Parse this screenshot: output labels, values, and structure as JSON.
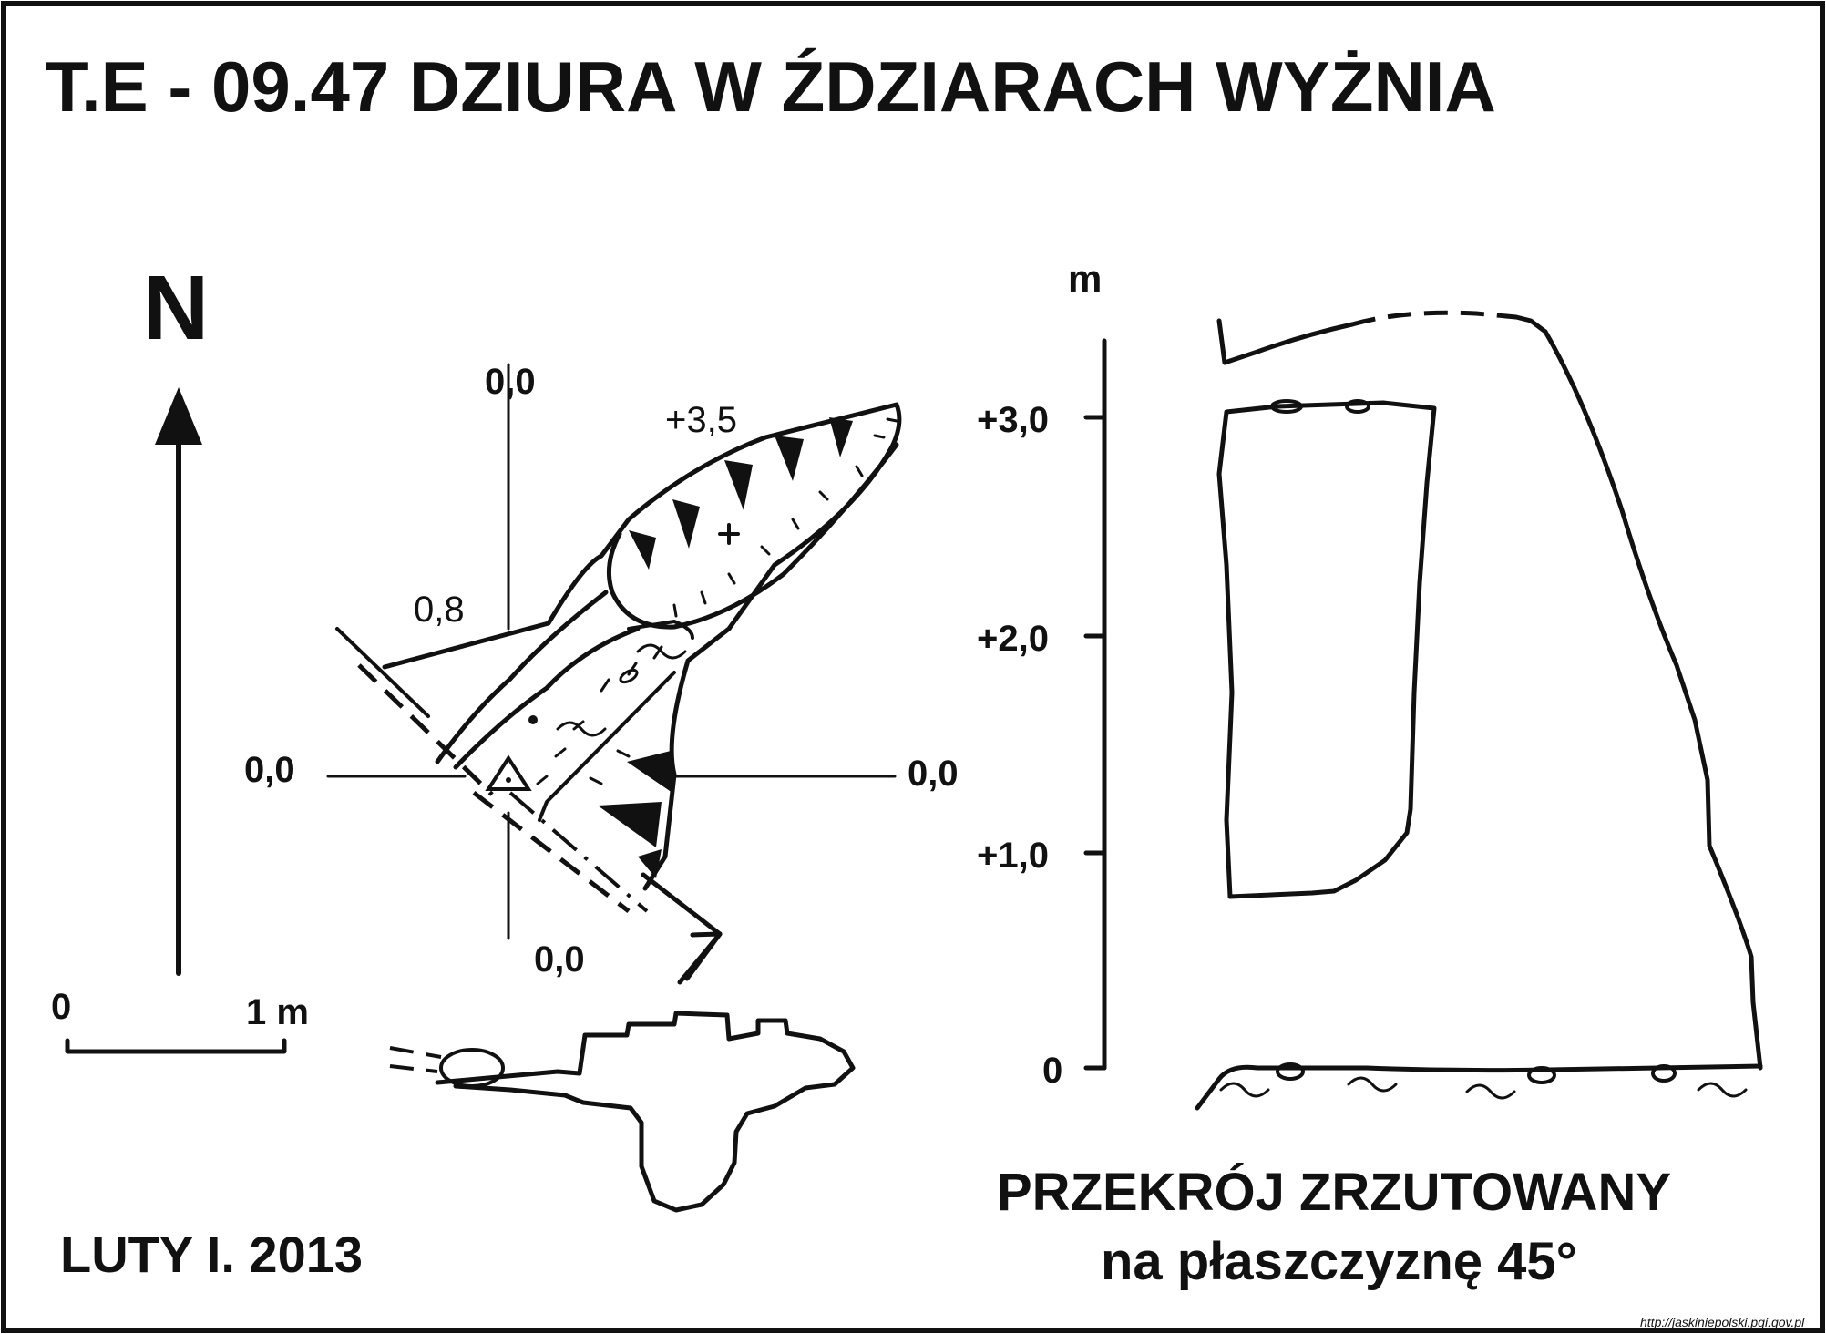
{
  "title": "T.E - 09.47  DZIURA W ŹDZIARACH WYŻNIA",
  "plan": {
    "north_label": "N",
    "scale_zero": "0",
    "scale_one": "1 m",
    "ref_top": "0,0",
    "ref_left": "0,0",
    "ref_right": "0,0",
    "ref_bottom": "0,0",
    "height_08": "0,8",
    "height_35": "+3,5"
  },
  "author_date": "LUTY I. 2013",
  "section": {
    "unit": "m",
    "ticks": [
      "+3,0",
      "+2,0",
      "+1,0",
      "0"
    ],
    "title_line1": "PRZEKRÓJ ZRZUTOWANY",
    "title_line2": "na płaszczyznę 45°"
  },
  "source_url": "http://jaskiniepolski.pgi.gov.pl"
}
